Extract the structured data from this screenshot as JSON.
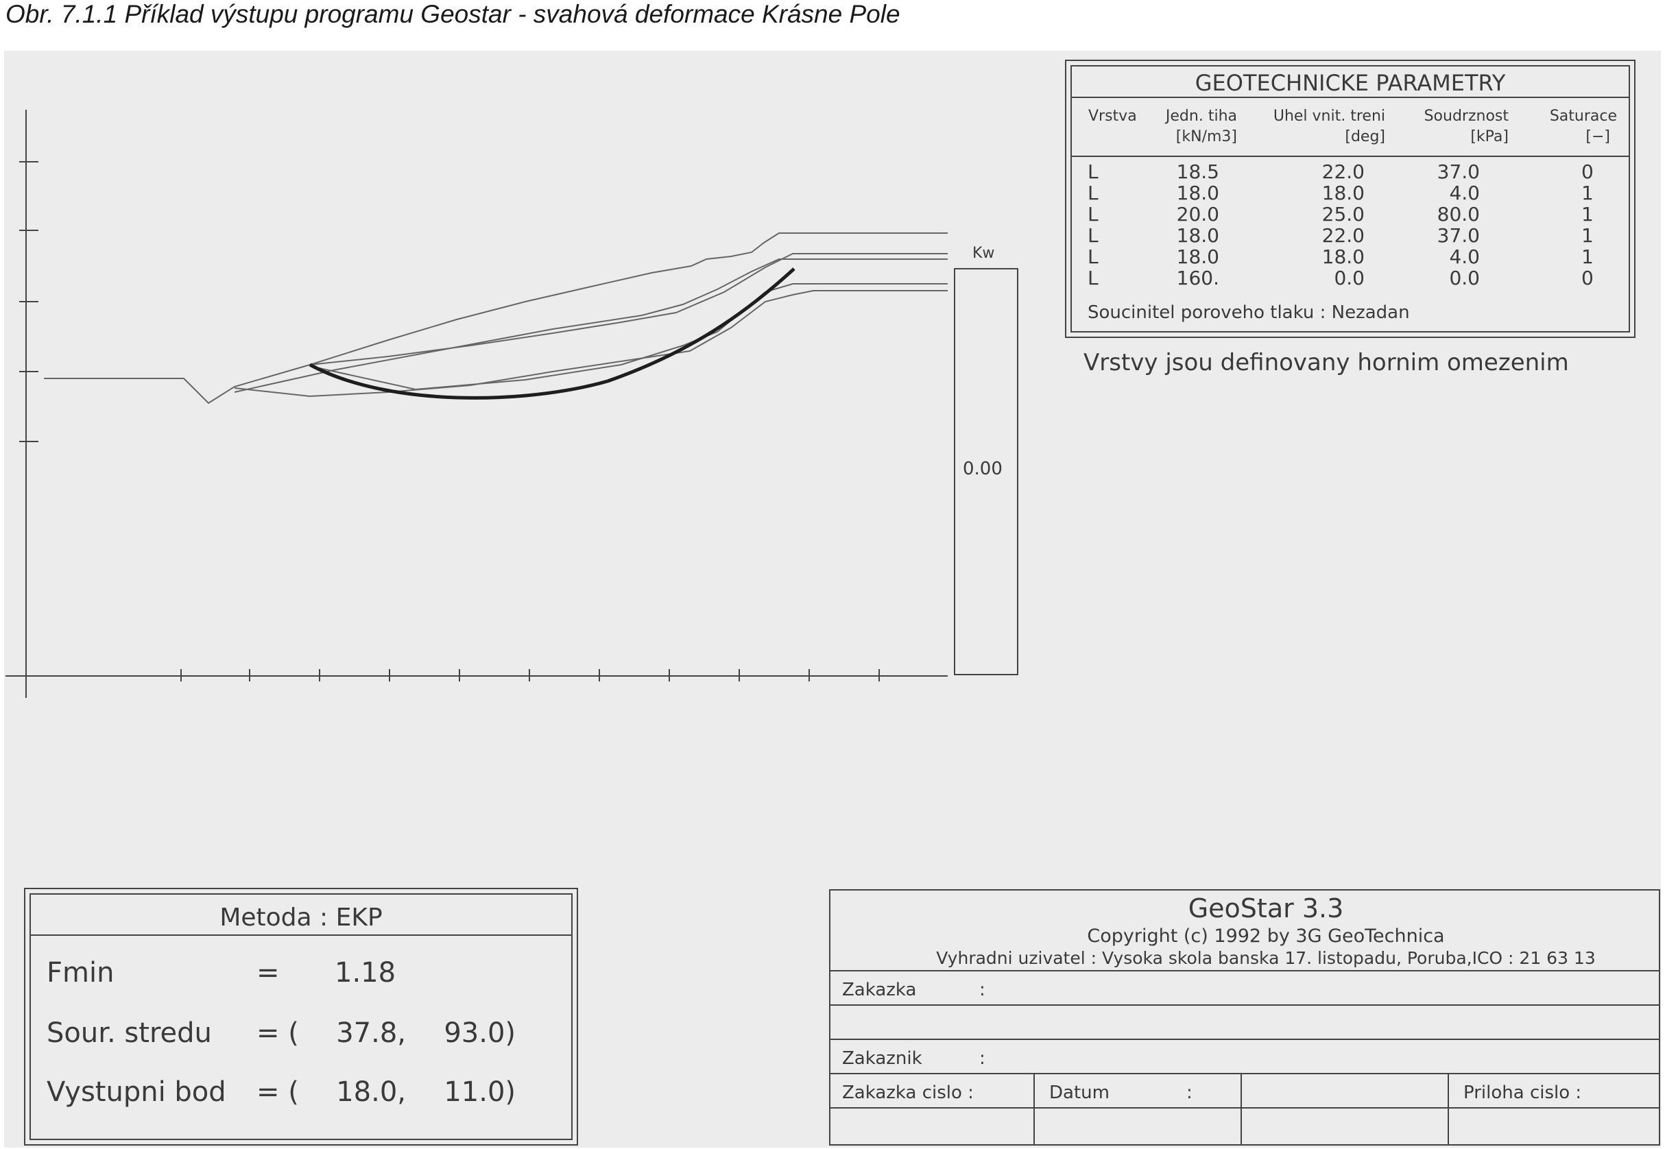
{
  "caption": "Obr. 7.1.1  Příklad výstupu programu Geostar - svahová deformace Krásne Pole",
  "profile": {
    "kw_label": "Kw",
    "kw_value": "0.00"
  },
  "parameters": {
    "title": "GEOTECHNICKE  PARAMETRY",
    "headers": [
      {
        "name": "Vrstva",
        "unit": ""
      },
      {
        "name": "Jedn. tiha",
        "unit": "[kN/m3]"
      },
      {
        "name": "Uhel vnit. treni",
        "unit": "[deg]"
      },
      {
        "name": "Soudrznost",
        "unit": "[kPa]"
      },
      {
        "name": "Saturace",
        "unit": "[−]"
      }
    ],
    "rows": [
      [
        "L",
        "18.5",
        "22.0",
        "37.0",
        "0"
      ],
      [
        "L",
        "18.0",
        "18.0",
        "4.0",
        "1"
      ],
      [
        "L",
        "20.0",
        "25.0",
        "80.0",
        "1"
      ],
      [
        "L",
        "18.0",
        "22.0",
        "37.0",
        "1"
      ],
      [
        "L",
        "18.0",
        "18.0",
        "4.0",
        "1"
      ],
      [
        "L",
        "160.",
        "0.0",
        "0.0",
        "0"
      ]
    ],
    "pore_pressure": "Soucinitel poroveho tlaku : Nezadan",
    "layers_note": "Vrstvy jsou definovany hornim omezenim"
  },
  "result": {
    "method": "Metoda : EKP",
    "fmin_label": "Fmin",
    "fmin_eq": "=",
    "fmin_value": "1.18",
    "center_label": "Sour. stredu",
    "center_eq": "= (",
    "center_x": "37.8,",
    "center_y": "93.0)",
    "exit_label": "Vystupni bod",
    "exit_eq": "= (",
    "exit_x": "18.0,",
    "exit_y": "11.0)"
  },
  "title_block": {
    "program": "GeoStar 3.3",
    "copyright": "Copyright (c) 1992 by 3G GeoTechnica",
    "user": "Vyhradni uzivatel : Vysoka skola banska 17. listopadu, Poruba,ICO : 21 63 13",
    "zakazka": "Zakazka",
    "zakaznik": "Zakaznik",
    "colon": ":",
    "zakazka_cislo": "Zakazka cislo :",
    "datum": "Datum",
    "priloha": "Priloha cislo :"
  }
}
